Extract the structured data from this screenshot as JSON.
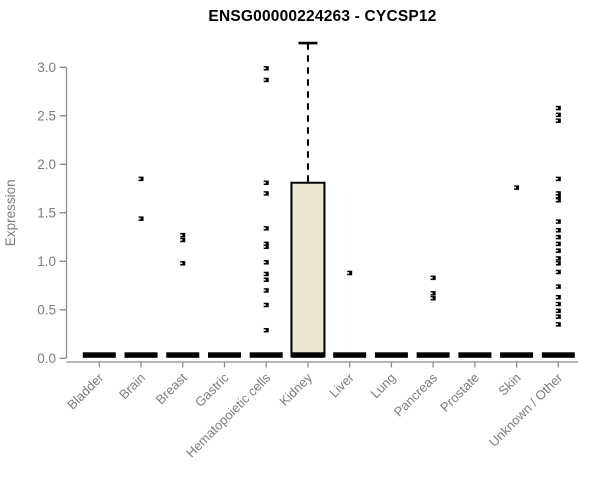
{
  "page": {
    "background": "#FFFFFF"
  },
  "chart_data": {
    "type": "boxplot",
    "title": "ENSG00000224263 - CYCSP12",
    "ylabel": "Expression",
    "xlabel": "",
    "ylim": [
      0,
      3.3
    ],
    "yticks": [
      0.0,
      0.5,
      1.0,
      1.5,
      2.0,
      2.5,
      3.0
    ],
    "ytick_labels": [
      "0.0",
      "0.5",
      "1.0",
      "1.5",
      "2.0",
      "2.5",
      "3.0"
    ],
    "grid": false,
    "legend": "none",
    "categories": [
      "Bladder",
      "Brain",
      "Breast",
      "Gastric",
      "Hematopoietic cells",
      "Kidney",
      "Liver",
      "Lung",
      "Pancreas",
      "Prostate",
      "Skin",
      "Unknown / Other"
    ],
    "series": [
      {
        "category": "Bladder",
        "q1": 0,
        "median": 0.02,
        "q3": 0.03,
        "whisker_low": 0,
        "whisker_high": 0.03,
        "outliers": []
      },
      {
        "category": "Brain",
        "q1": 0,
        "median": 0.02,
        "q3": 0.03,
        "whisker_low": 0,
        "whisker_high": 0.03,
        "outliers": [
          1.85,
          1.44
        ]
      },
      {
        "category": "Breast",
        "q1": 0,
        "median": 0.02,
        "q3": 0.03,
        "whisker_low": 0,
        "whisker_high": 0.03,
        "outliers": [
          1.27,
          1.22,
          0.98
        ]
      },
      {
        "category": "Gastric",
        "q1": 0,
        "median": 0.02,
        "q3": 0.03,
        "whisker_low": 0,
        "whisker_high": 0.03,
        "outliers": []
      },
      {
        "category": "Hematopoietic cells",
        "q1": 0,
        "median": 0.02,
        "q3": 0.03,
        "whisker_low": 0,
        "whisker_high": 0.03,
        "outliers": [
          2.99,
          2.87,
          1.81,
          1.7,
          1.34,
          1.18,
          1.15,
          0.99,
          0.87,
          0.81,
          0.7,
          0.55,
          0.29
        ]
      },
      {
        "category": "Kidney",
        "q1": 0,
        "median": 0.02,
        "q3": 1.81,
        "whisker_low": 0,
        "whisker_high": 3.25,
        "outliers": []
      },
      {
        "category": "Liver",
        "q1": 0,
        "median": 0.02,
        "q3": 0.03,
        "whisker_low": 0,
        "whisker_high": 0.03,
        "outliers": [
          0.88
        ]
      },
      {
        "category": "Lung",
        "q1": 0,
        "median": 0.02,
        "q3": 0.03,
        "whisker_low": 0,
        "whisker_high": 0.03,
        "outliers": []
      },
      {
        "category": "Pancreas",
        "q1": 0,
        "median": 0.02,
        "q3": 0.03,
        "whisker_low": 0,
        "whisker_high": 0.03,
        "outliers": [
          0.83,
          0.67,
          0.62
        ]
      },
      {
        "category": "Prostate",
        "q1": 0,
        "median": 0.02,
        "q3": 0.03,
        "whisker_low": 0,
        "whisker_high": 0.03,
        "outliers": []
      },
      {
        "category": "Skin",
        "q1": 0,
        "median": 0.02,
        "q3": 0.03,
        "whisker_low": 0,
        "whisker_high": 0.03,
        "outliers": [
          1.76
        ]
      },
      {
        "category": "Unknown / Other",
        "q1": 0,
        "median": 0.02,
        "q3": 0.03,
        "whisker_low": 0,
        "whisker_high": 0.03,
        "outliers": [
          2.58,
          2.51,
          2.45,
          1.85,
          1.7,
          1.67,
          1.63,
          1.41,
          1.32,
          1.25,
          1.18,
          1.11,
          1.03,
          0.98,
          0.89,
          0.74,
          0.63,
          0.56,
          0.49,
          0.43,
          0.35
        ]
      }
    ],
    "styles": {
      "box_fill": "#ECE7D0",
      "box_stroke": "#000000",
      "median_color": "#000000",
      "point_color": "#000000",
      "axis_color": "#8C8C8C",
      "label_color": "#7D7D7D",
      "title_color": "#000000",
      "background": "#FFFFFF"
    }
  }
}
